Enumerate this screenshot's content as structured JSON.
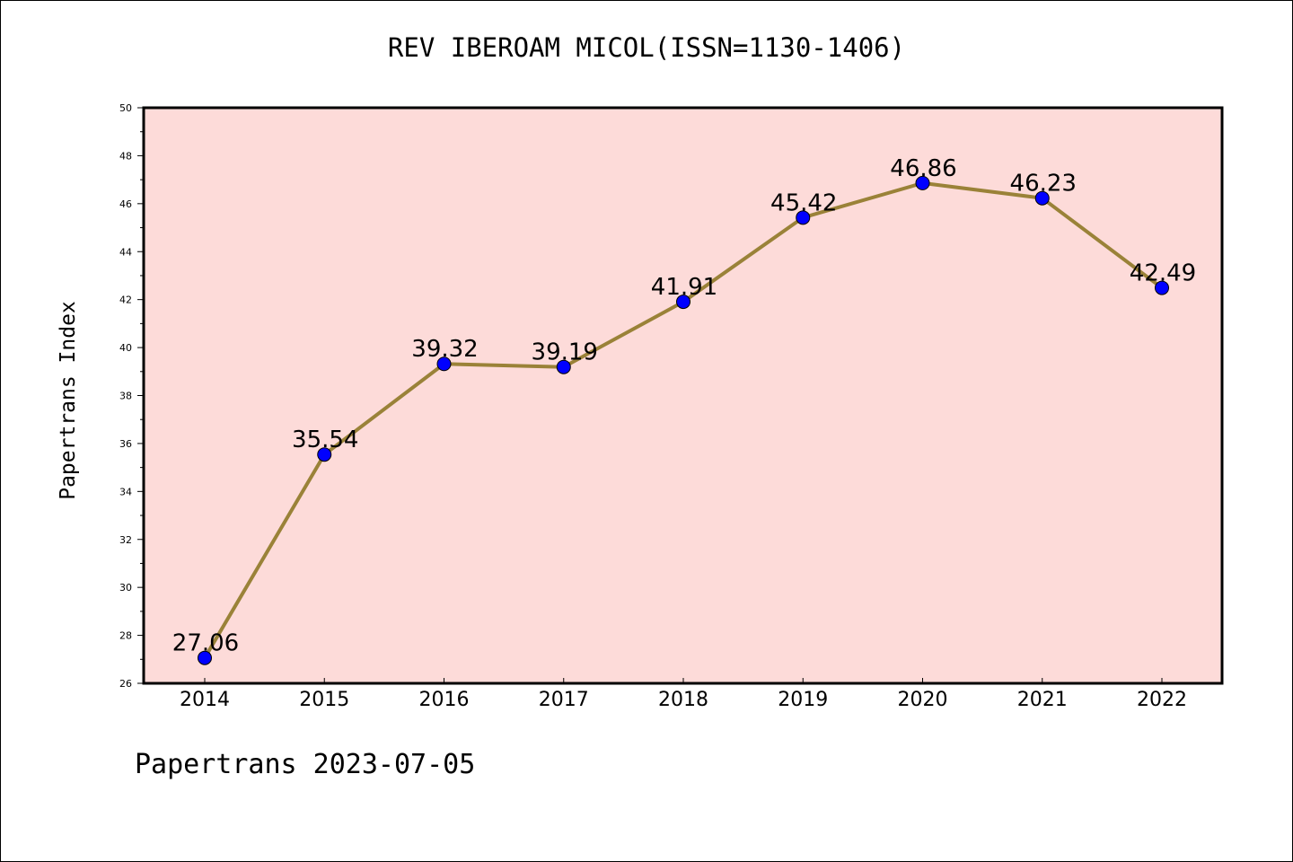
{
  "title": "REV IBEROAM MICOL(ISSN=1130-1406)",
  "footer": "Papertrans 2023-07-05",
  "chart_data": {
    "type": "line",
    "title": "REV IBEROAM MICOL(ISSN=1130-1406)",
    "xlabel": "",
    "ylabel": "Papertrans Index",
    "categories": [
      "2014",
      "2015",
      "2016",
      "2017",
      "2018",
      "2019",
      "2020",
      "2021",
      "2022"
    ],
    "series": [
      {
        "values": [
          27.06,
          35.54,
          39.32,
          39.19,
          41.91,
          45.42,
          46.86,
          46.23,
          42.49
        ]
      }
    ],
    "data_labels": [
      "27.06",
      "35.54",
      "39.32",
      "39.19",
      "41.91",
      "45.42",
      "46.86",
      "46.23",
      "42.49"
    ],
    "ylim": [
      26,
      50
    ],
    "yticks": [
      26,
      28,
      30,
      32,
      34,
      36,
      38,
      40,
      42,
      44,
      46,
      48,
      50
    ],
    "grid": false,
    "colors": {
      "plot_background": "#fddbd9",
      "line": "#9a8238",
      "marker": "#0000ff"
    }
  }
}
